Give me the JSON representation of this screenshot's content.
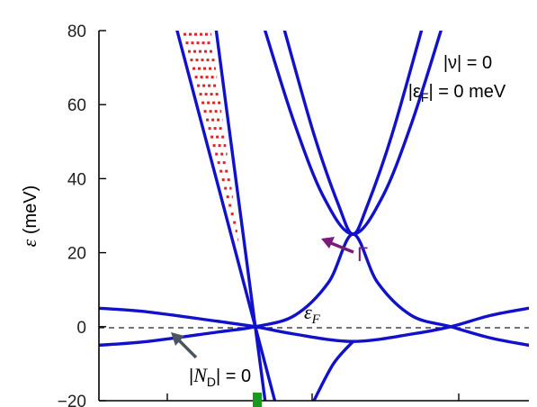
{
  "chart_data": {
    "type": "line",
    "title": "",
    "xlabel": "",
    "ylabel_symbol": "ε",
    "ylabel_unit": "(meV)",
    "ylim": [
      -20,
      80
    ],
    "yticks": [
      "80",
      "60",
      "40",
      "20",
      "0",
      "−20"
    ],
    "grid": false,
    "legend": "none",
    "colors": {
      "bands": "#1111cc",
      "filled": "#e82020",
      "gamma": "#7a1a7a",
      "nd_arrow": "#4a5560",
      "fermi": "#222222",
      "marker": "#1a9a1a"
    },
    "series": [
      {
        "name": "",
        "points": [
          [
            -1.2,
            80
          ],
          [
            -1.0,
            60
          ],
          [
            -0.8,
            40
          ],
          [
            -0.6,
            20
          ],
          [
            -0.4,
            0
          ],
          [
            -0.2,
            -20
          ]
        ]
      },
      {
        "name": "",
        "points": [
          [
            -0.8,
            80
          ],
          [
            -0.7,
            60
          ],
          [
            -0.6,
            40
          ],
          [
            -0.5,
            20
          ],
          [
            -0.4,
            0
          ],
          [
            -0.3,
            -20
          ]
        ]
      },
      {
        "name": "",
        "points": [
          [
            -2.0,
            5
          ],
          [
            -1.5,
            4
          ],
          [
            -0.8,
            1.5
          ],
          [
            -0.4,
            0
          ],
          [
            0,
            -2
          ],
          [
            0.6,
            -4
          ],
          [
            1.2,
            -2
          ],
          [
            1.6,
            0
          ],
          [
            2.0,
            3
          ],
          [
            2.4,
            5
          ]
        ]
      },
      {
        "name": "",
        "points": [
          [
            -2.0,
            -5
          ],
          [
            -1.5,
            -4
          ],
          [
            -0.8,
            -1.5
          ],
          [
            -0.4,
            0
          ],
          [
            0,
            3
          ],
          [
            0.35,
            12
          ],
          [
            0.6,
            25
          ],
          [
            0.85,
            12
          ],
          [
            1.2,
            3
          ],
          [
            1.6,
            0
          ],
          [
            2.0,
            -3
          ],
          [
            2.4,
            -5
          ]
        ]
      },
      {
        "name": "",
        "points": [
          [
            -0.3,
            80
          ],
          [
            0.0,
            55
          ],
          [
            0.3,
            35
          ],
          [
            0.6,
            25
          ],
          [
            0.9,
            35
          ],
          [
            1.2,
            55
          ],
          [
            1.5,
            80
          ]
        ]
      },
      {
        "name": "",
        "points": [
          [
            -0.1,
            80
          ],
          [
            0.2,
            52
          ],
          [
            0.45,
            33
          ],
          [
            0.6,
            25
          ],
          [
            0.75,
            33
          ],
          [
            1.0,
            52
          ],
          [
            1.3,
            80
          ]
        ]
      },
      {
        "name": "",
        "points": [
          [
            0.2,
            -20
          ],
          [
            0.4,
            -10
          ],
          [
            0.6,
            -4
          ]
        ]
      }
    ],
    "annotations": {
      "nu_label": "|ν| = 0",
      "ef_line": "|ε",
      "ef_sub": "F",
      "ef_value": "| = 0 meV",
      "fermi_sym": "ε",
      "fermi_sub": "F",
      "gamma": "Γ",
      "nd_pre": "|N",
      "nd_sub": "D",
      "nd_post": "| = 0"
    }
  }
}
